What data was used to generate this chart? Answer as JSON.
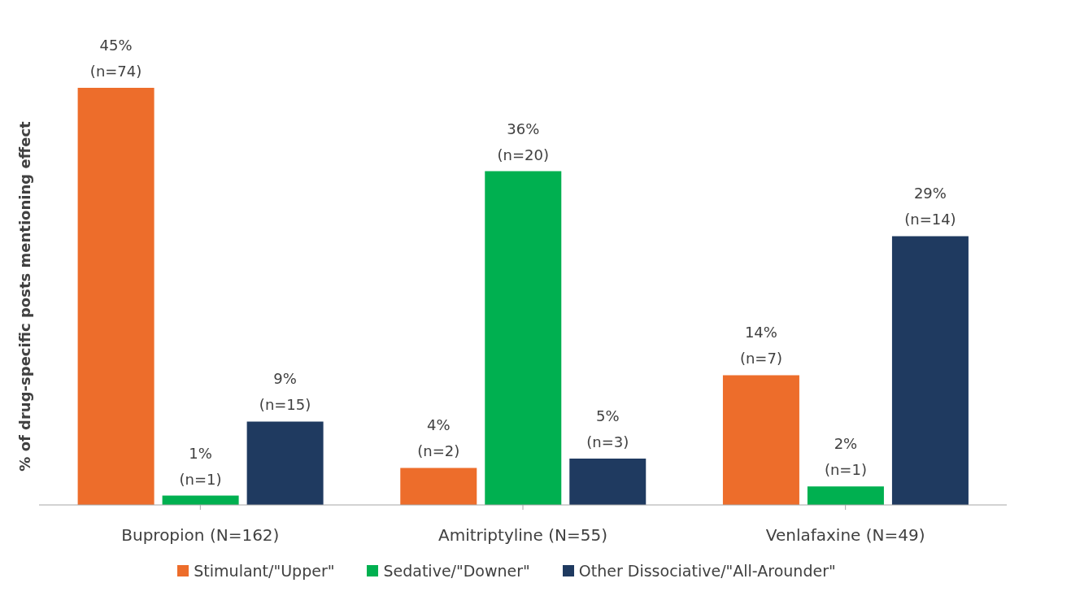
{
  "chart_data": {
    "type": "bar",
    "ylabel": "% of drug-specific  posts mentioning effect",
    "categories": [
      "Bupropion (N=162)",
      "Amitriptyline (N=55)",
      "Venlafaxine (N=49)"
    ],
    "series": [
      {
        "name": "Stimulant/\"Upper\"",
        "color": "#ed6d2b",
        "values": [
          45,
          4,
          14
        ],
        "value_labels": [
          "45%\n(n=74)",
          "4%\n(n=2)",
          "14%\n(n=7)"
        ]
      },
      {
        "name": "Sedative/\"Downer\"",
        "color": "#00b050",
        "values": [
          1,
          36,
          2
        ],
        "value_labels": [
          "1%\n(n=1)",
          "36%\n(n=20)",
          "2%\n(n=1)"
        ]
      },
      {
        "name": "Other Dissociative/\"All-Arounder\"",
        "color": "#1f3a60",
        "values": [
          9,
          5,
          29
        ],
        "value_labels": [
          "9%\n(n=15)",
          "5%\n(n=3)",
          "29%\n(n=14)"
        ]
      }
    ],
    "grid": false,
    "legend": "bottom"
  }
}
